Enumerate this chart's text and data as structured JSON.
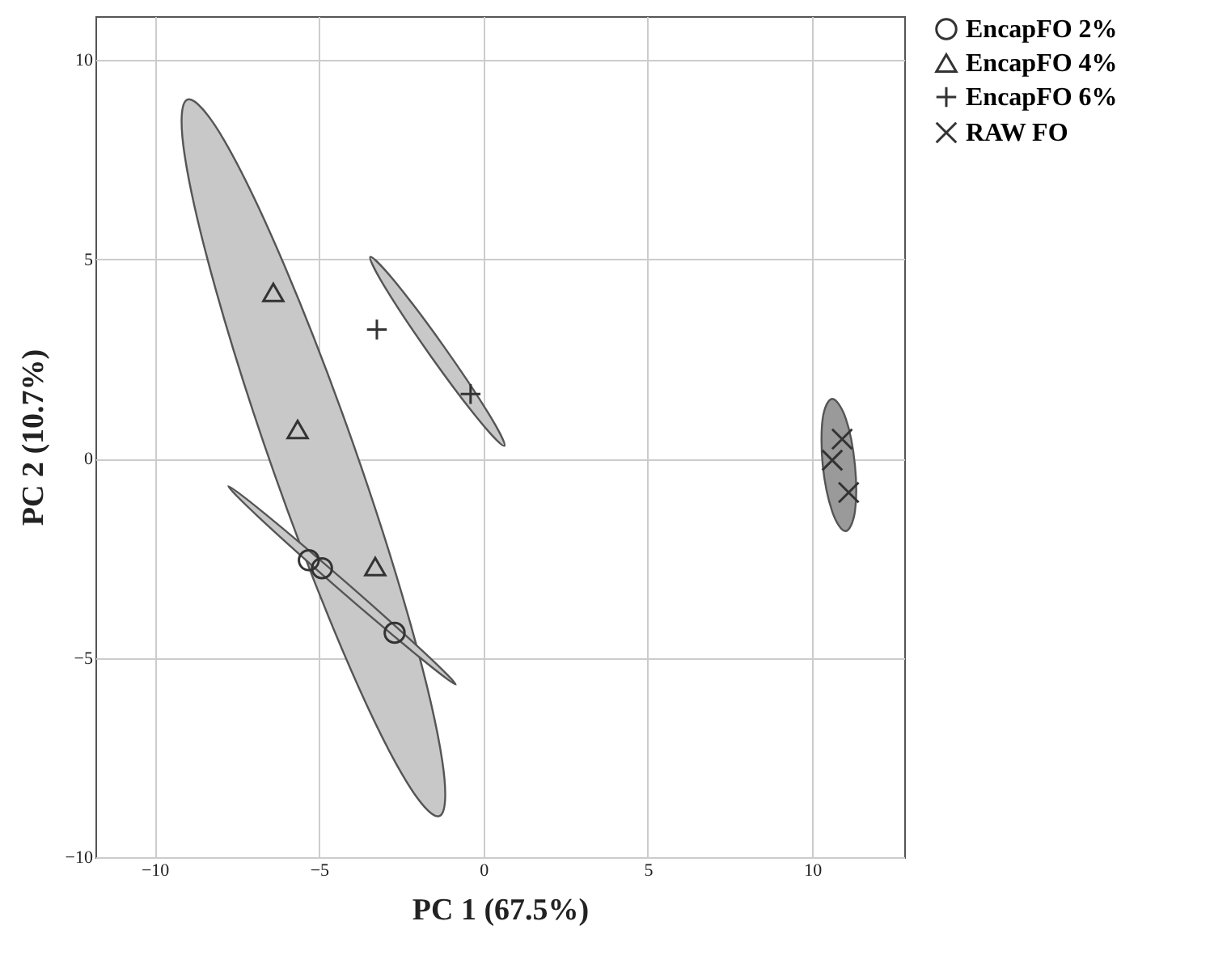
{
  "chart_data": {
    "type": "scatter",
    "xlabel": "PC 1 (67.5%)",
    "ylabel": "PC 2 (10.7%)",
    "xlim": [
      -11.8,
      12.8
    ],
    "ylim": [
      -10,
      11.1
    ],
    "xticks": [
      -10,
      -5,
      0,
      5,
      10
    ],
    "yticks": [
      -10,
      -5,
      0,
      5,
      10
    ],
    "grid": true,
    "legend": "top right",
    "series": [
      {
        "type": "area",
        "color": "#c8c8c8",
        "x": [
          -9.0,
          -7.88,
          -6.04,
          -3.96,
          -2.21,
          -1.25,
          -1.34,
          -2.46,
          -4.3,
          -6.38,
          -8.13,
          -9.09
        ],
        "values": [
          9.01,
          7.98,
          4.82,
          0.37,
          -4.17,
          -7.59,
          -8.97,
          -7.94,
          -4.78,
          -0.33,
          4.21,
          7.63
        ]
      },
      {
        "type": "area",
        "color": "#c8c8c8",
        "x": [
          -7.76,
          -6.68,
          -4.2,
          -1.78,
          -0.84,
          -1.92,
          -4.4,
          -6.82
        ],
        "values": [
          -0.69,
          -1.36,
          -3.09,
          -4.88,
          -5.67,
          -5.0,
          -3.27,
          -1.48
        ]
      },
      {
        "type": "area",
        "color": "#c8c8c8",
        "x": [
          -3.44,
          -2.7,
          -1.2,
          0.18,
          0.64,
          -0.1,
          -1.6,
          -2.98
        ],
        "values": [
          5.06,
          4.45,
          2.81,
          1.1,
          0.32,
          0.93,
          2.57,
          4.28
        ]
      },
      {
        "type": "area",
        "color": "#9a9a9a",
        "x": [
          10.61,
          11.02,
          11.3,
          11.3,
          11.01,
          10.61,
          10.32,
          10.32
        ],
        "values": [
          1.5,
          1.01,
          -0.16,
          -1.33,
          -1.82,
          -1.33,
          -0.16,
          1.01
        ]
      },
      {
        "name": "EncapFO 2%",
        "color": "#333333",
        "marker": "circle",
        "x": [
          -5.31,
          -4.91,
          -2.7
        ],
        "values": [
          -2.55,
          -2.75,
          -4.37
        ]
      },
      {
        "name": "EncapFO 4%",
        "color": "#333333",
        "marker": "triangle",
        "x": [
          -6.39,
          -5.65,
          -3.29
        ],
        "values": [
          4.17,
          0.73,
          -2.71
        ]
      },
      {
        "name": "EncapFO 6%",
        "color": "#333333",
        "marker": "plus",
        "x": [
          -3.24,
          -0.39
        ],
        "values": [
          3.24,
          1.62
        ]
      },
      {
        "name": "RAW FO",
        "color": "#333333",
        "marker": "cross",
        "x": [
          10.61,
          10.91,
          11.11
        ],
        "values": [
          -0.04,
          0.49,
          -0.85
        ]
      }
    ]
  }
}
